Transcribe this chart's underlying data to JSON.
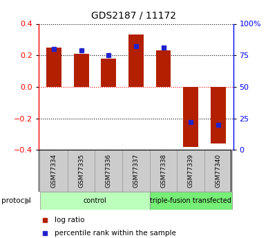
{
  "title": "GDS2187 / 11172",
  "samples": [
    "GSM77334",
    "GSM77335",
    "GSM77336",
    "GSM77337",
    "GSM77338",
    "GSM77339",
    "GSM77340"
  ],
  "log_ratio": [
    0.25,
    0.21,
    0.18,
    0.33,
    0.23,
    -0.38,
    -0.36
  ],
  "percentile_rank": [
    80,
    79,
    75,
    82,
    81,
    22,
    20
  ],
  "ylim": [
    -0.4,
    0.4
  ],
  "yticks_left": [
    -0.4,
    -0.2,
    0.0,
    0.2,
    0.4
  ],
  "yticks_right": [
    0,
    25,
    50,
    75,
    100
  ],
  "bar_color": "#b22000",
  "percentile_color": "#2222cc",
  "groups": [
    {
      "label": "control",
      "start": 0,
      "end": 4,
      "color": "#bbffbb"
    },
    {
      "label": "triple-fusion transfected",
      "start": 4,
      "end": 7,
      "color": "#77ee77"
    }
  ],
  "protocol_label": "protocol",
  "legend_items": [
    {
      "label": "log ratio",
      "color": "#b22000"
    },
    {
      "label": "percentile rank within the sample",
      "color": "#2222cc"
    }
  ],
  "bar_width": 0.55,
  "fig_width": 3.88,
  "fig_height": 3.45,
  "dpi": 100
}
